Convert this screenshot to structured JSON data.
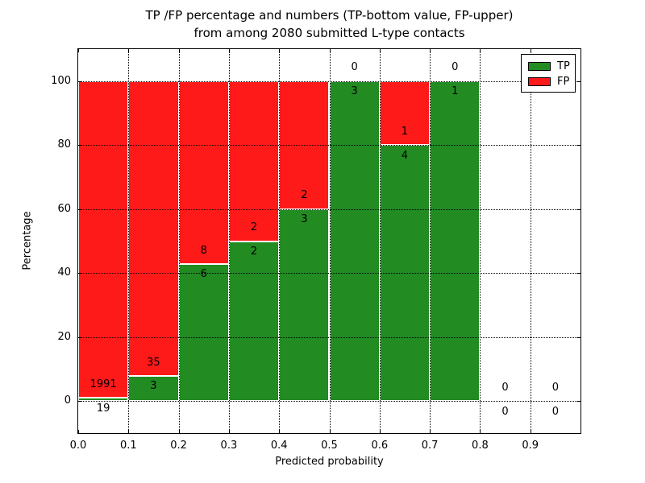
{
  "title": {
    "line1": "TP /FP percentage and numbers (TP-bottom value, FP-upper)",
    "line2": "from among 2080 submitted L-type contacts"
  },
  "axes": {
    "xlabel": "Predicted probability",
    "ylabel": "Percentage",
    "x_ticks": [
      "0.0",
      "0.1",
      "0.2",
      "0.3",
      "0.4",
      "0.5",
      "0.6",
      "0.7",
      "0.8",
      "0.9"
    ],
    "y_ticks": [
      "0",
      "20",
      "40",
      "60",
      "80",
      "100"
    ]
  },
  "legend": {
    "position": "upper right",
    "items": [
      {
        "label": "TP",
        "color": "#228b22"
      },
      {
        "label": "FP",
        "color": "#ff1a1a"
      }
    ]
  },
  "chart_data": {
    "type": "bar",
    "stacked": true,
    "normalized_to": 100,
    "title": "TP /FP percentage and numbers (TP-bottom value, FP-upper) from among 2080 submitted L-type contacts",
    "xlabel": "Predicted probability",
    "ylabel": "Percentage",
    "xlim": [
      0.0,
      1.0
    ],
    "ylim": [
      -10,
      110
    ],
    "grid": true,
    "total_contacts": 2080,
    "bin_width": 0.1,
    "bin_start": [
      0.0,
      0.1,
      0.2,
      0.3,
      0.4,
      0.5,
      0.6,
      0.7,
      0.8,
      0.9
    ],
    "series": [
      {
        "name": "TP",
        "color": "#228b22",
        "counts": [
          19,
          3,
          6,
          2,
          3,
          3,
          4,
          1,
          0,
          0
        ]
      },
      {
        "name": "FP",
        "color": "#ff1a1a",
        "counts": [
          1991,
          35,
          8,
          2,
          2,
          0,
          1,
          0,
          0,
          0
        ]
      }
    ],
    "tp_percent": [
      0.95,
      7.89,
      42.86,
      50.0,
      60.0,
      100.0,
      80.0,
      100.0,
      0.0,
      0.0
    ]
  }
}
